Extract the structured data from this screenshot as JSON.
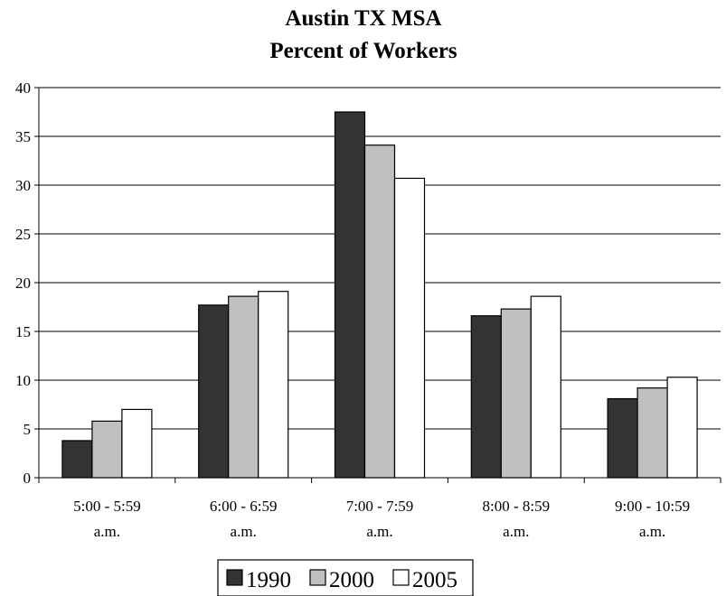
{
  "chart_data": {
    "type": "bar",
    "title": [
      "Austin TX MSA",
      "Percent of Workers"
    ],
    "xlabel": "",
    "ylabel": "",
    "categories": [
      [
        "5:00 - 5:59",
        "a.m."
      ],
      [
        "6:00 - 6:59",
        "a.m."
      ],
      [
        "7:00 - 7:59",
        "a.m."
      ],
      [
        "8:00 - 8:59",
        "a.m."
      ],
      [
        "9:00 - 10:59",
        "a.m."
      ]
    ],
    "series": [
      {
        "name": "1990",
        "color": "#333333",
        "values": [
          3.8,
          17.7,
          37.5,
          16.6,
          8.1
        ]
      },
      {
        "name": "2000",
        "color": "#c0c0c0",
        "values": [
          5.8,
          18.6,
          34.1,
          17.3,
          9.2
        ]
      },
      {
        "name": "2005",
        "color": "#ffffff",
        "values": [
          7.0,
          19.1,
          30.7,
          18.6,
          10.3
        ]
      }
    ],
    "ylim": [
      0,
      40
    ],
    "yticks": [
      0,
      5,
      10,
      15,
      20,
      25,
      30,
      35,
      40
    ],
    "grid": true,
    "legend": "bottom"
  }
}
